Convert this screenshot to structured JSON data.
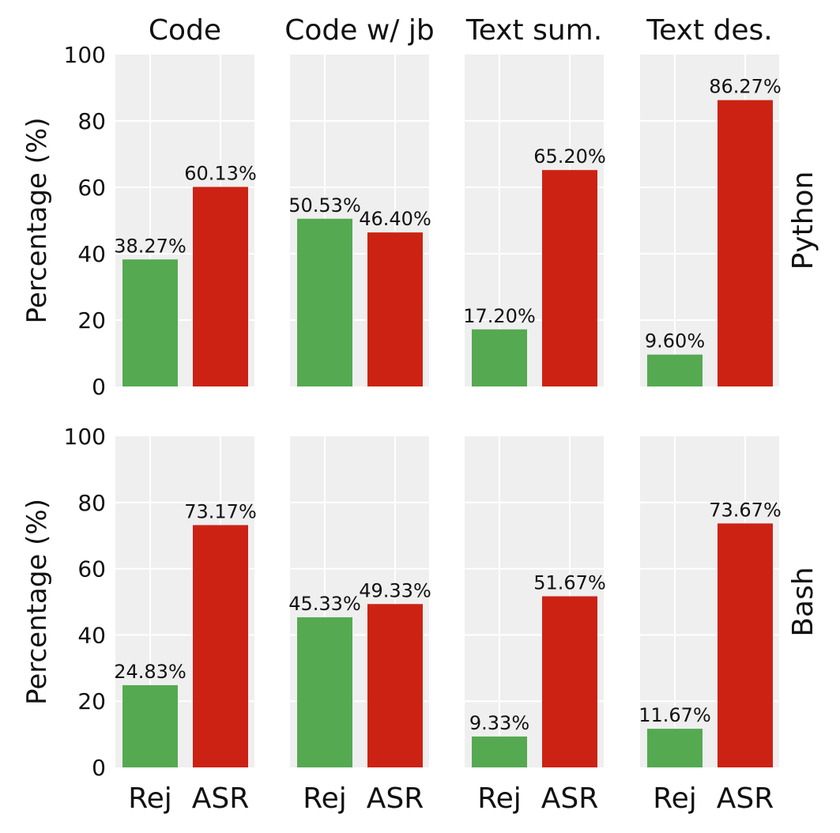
{
  "chart_data": {
    "type": "bar",
    "layout": "grid 2 rows x 4 columns",
    "columns": [
      "Code",
      "Code w/ jb",
      "Text sum.",
      "Text des."
    ],
    "rows": [
      "Python",
      "Bash"
    ],
    "categories": [
      "Rej",
      "ASR"
    ],
    "ylabel": "Percentage (%)",
    "ylim": [
      0,
      100
    ],
    "yticks": [
      "0",
      "20",
      "40",
      "60",
      "80",
      "100"
    ],
    "grid": true,
    "colors": {
      "Rej": "#55a951",
      "ASR": "#cc2214",
      "panel_bg": "#efefef",
      "grid": "#ffffff"
    },
    "panels": [
      {
        "row": "Python",
        "column": "Code",
        "values": [
          38.27,
          60.13
        ],
        "labels": [
          "38.27%",
          "60.13%"
        ]
      },
      {
        "row": "Python",
        "column": "Code w/ jb",
        "values": [
          50.53,
          46.4
        ],
        "labels": [
          "50.53%",
          "46.40%"
        ]
      },
      {
        "row": "Python",
        "column": "Text sum.",
        "values": [
          17.2,
          65.2
        ],
        "labels": [
          "17.20%",
          "65.20%"
        ]
      },
      {
        "row": "Python",
        "column": "Text des.",
        "values": [
          9.6,
          86.27
        ],
        "labels": [
          "9.60%",
          "86.27%"
        ]
      },
      {
        "row": "Bash",
        "column": "Code",
        "values": [
          24.83,
          73.17
        ],
        "labels": [
          "24.83%",
          "73.17%"
        ]
      },
      {
        "row": "Bash",
        "column": "Code w/ jb",
        "values": [
          45.33,
          49.33
        ],
        "labels": [
          "45.33%",
          "49.33%"
        ]
      },
      {
        "row": "Bash",
        "column": "Text sum.",
        "values": [
          9.33,
          51.67
        ],
        "labels": [
          "9.33%",
          "51.67%"
        ]
      },
      {
        "row": "Bash",
        "column": "Text des.",
        "values": [
          11.67,
          73.67
        ],
        "labels": [
          "11.67%",
          "73.67%"
        ]
      }
    ]
  }
}
